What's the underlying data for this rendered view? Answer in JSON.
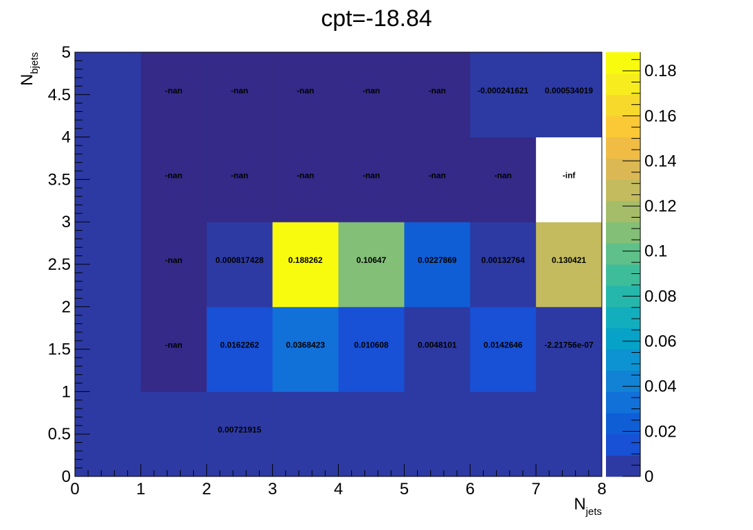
{
  "chart_data": {
    "type": "heatmap",
    "title": "cpt=-18.84",
    "xlabel": {
      "main": "N",
      "sub": "jets"
    },
    "ylabel": {
      "main": "N",
      "sub": "bjets"
    },
    "xlim": [
      0,
      8
    ],
    "ylim": [
      0,
      5
    ],
    "zlim": [
      0,
      0.188262
    ],
    "x_tick_labels": [
      "0",
      "1",
      "2",
      "3",
      "4",
      "5",
      "6",
      "7",
      "8"
    ],
    "y_tick_labels": [
      "0",
      "0.5",
      "1",
      "1.5",
      "2",
      "2.5",
      "3",
      "3.5",
      "4",
      "4.5",
      "5"
    ],
    "colorbar_tick_labels": [
      "0",
      "0.02",
      "0.04",
      "0.06",
      "0.08",
      "0.1",
      "0.12",
      "0.14",
      "0.16",
      "0.18"
    ],
    "colorbar_ticks": [
      0,
      0.02,
      0.04,
      0.06,
      0.08,
      0.1,
      0.12,
      0.14,
      0.16,
      0.18
    ],
    "x_bin_edges": [
      0,
      1,
      2,
      3,
      4,
      5,
      6,
      7,
      8
    ],
    "y_bin_edges": [
      0,
      1,
      2,
      3,
      4,
      5
    ],
    "cells": [
      {
        "x": 0,
        "y": 0,
        "value": 0,
        "label": ""
      },
      {
        "x": 1,
        "y": 0,
        "value": 0,
        "label": ""
      },
      {
        "x": 2,
        "y": 0,
        "value": 0.00721915,
        "label": "0.00721915"
      },
      {
        "x": 3,
        "y": 0,
        "value": 0,
        "label": ""
      },
      {
        "x": 4,
        "y": 0,
        "value": 0,
        "label": ""
      },
      {
        "x": 5,
        "y": 0,
        "value": 0,
        "label": ""
      },
      {
        "x": 6,
        "y": 0,
        "value": 0,
        "label": ""
      },
      {
        "x": 7,
        "y": 0,
        "value": 0,
        "label": ""
      },
      {
        "x": 0,
        "y": 1,
        "value": 0,
        "label": ""
      },
      {
        "x": 1,
        "y": 1,
        "value": "nan",
        "label": "-nan"
      },
      {
        "x": 2,
        "y": 1,
        "value": 0.0162262,
        "label": "0.0162262"
      },
      {
        "x": 3,
        "y": 1,
        "value": 0.0368423,
        "label": "0.0368423"
      },
      {
        "x": 4,
        "y": 1,
        "value": 0.010608,
        "label": "0.010608"
      },
      {
        "x": 5,
        "y": 1,
        "value": 0.0048101,
        "label": "0.0048101"
      },
      {
        "x": 6,
        "y": 1,
        "value": 0.0142646,
        "label": "0.0142646"
      },
      {
        "x": 7,
        "y": 1,
        "value": -2.21756e-07,
        "label": "-2.21756e-07"
      },
      {
        "x": 0,
        "y": 2,
        "value": 0,
        "label": ""
      },
      {
        "x": 1,
        "y": 2,
        "value": "nan",
        "label": "-nan"
      },
      {
        "x": 2,
        "y": 2,
        "value": 0.000817428,
        "label": "0.000817428"
      },
      {
        "x": 3,
        "y": 2,
        "value": 0.188262,
        "label": "0.188262"
      },
      {
        "x": 4,
        "y": 2,
        "value": 0.10647,
        "label": "0.10647"
      },
      {
        "x": 5,
        "y": 2,
        "value": 0.0227869,
        "label": "0.0227869"
      },
      {
        "x": 6,
        "y": 2,
        "value": 0.00132764,
        "label": "0.00132764"
      },
      {
        "x": 7,
        "y": 2,
        "value": 0.130421,
        "label": "0.130421"
      },
      {
        "x": 0,
        "y": 3,
        "value": 0,
        "label": ""
      },
      {
        "x": 1,
        "y": 3,
        "value": "nan",
        "label": "-nan"
      },
      {
        "x": 2,
        "y": 3,
        "value": "nan",
        "label": "-nan"
      },
      {
        "x": 3,
        "y": 3,
        "value": "nan",
        "label": "-nan"
      },
      {
        "x": 4,
        "y": 3,
        "value": "nan",
        "label": "-nan"
      },
      {
        "x": 5,
        "y": 3,
        "value": "nan",
        "label": "-nan"
      },
      {
        "x": 6,
        "y": 3,
        "value": "nan",
        "label": "-nan"
      },
      {
        "x": 7,
        "y": 3,
        "value": "-inf",
        "label": "-inf"
      },
      {
        "x": 0,
        "y": 4,
        "value": 0,
        "label": ""
      },
      {
        "x": 1,
        "y": 4,
        "value": "nan",
        "label": "-nan"
      },
      {
        "x": 2,
        "y": 4,
        "value": "nan",
        "label": "-nan"
      },
      {
        "x": 3,
        "y": 4,
        "value": "nan",
        "label": "-nan"
      },
      {
        "x": 4,
        "y": 4,
        "value": "nan",
        "label": "-nan"
      },
      {
        "x": 5,
        "y": 4,
        "value": "nan",
        "label": "-nan"
      },
      {
        "x": 6,
        "y": 4,
        "value": -0.000241621,
        "label": "-0.000241621"
      },
      {
        "x": 7,
        "y": 4,
        "value": 0.000534019,
        "label": "0.000534019"
      }
    ],
    "colors": {
      "nan": "#352a87",
      "inf": "#ffffff",
      "palette": [
        "#2d3aa3",
        "#1850d6",
        "#0f5ed6",
        "#1270d9",
        "#1282d4",
        "#0d93d1",
        "#06a2c8",
        "#12aebe",
        "#25b7ab",
        "#3ebd9b",
        "#5fc08a",
        "#83bf77",
        "#a5bd68",
        "#c3bb5e",
        "#dcb855",
        "#f0bc43",
        "#fbc836",
        "#f7d92c",
        "#f7ed1e",
        "#f9fb0e"
      ]
    }
  }
}
